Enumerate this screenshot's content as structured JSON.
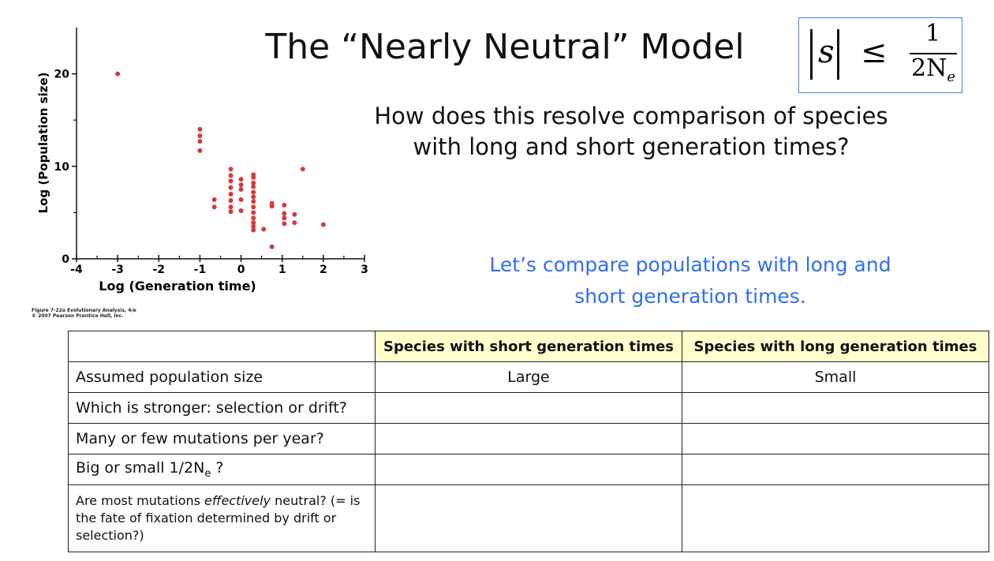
{
  "chart_data": {
    "type": "scatter",
    "x": [
      -3,
      -1,
      -1,
      -1,
      -1,
      -0.65,
      -0.65,
      -0.25,
      -0.25,
      -0.25,
      -0.25,
      -0.25,
      -0.25,
      -0.25,
      -0.25,
      0,
      0,
      0,
      0,
      0,
      0.3,
      0.3,
      0.3,
      0.3,
      0.3,
      0.3,
      0.3,
      0.3,
      0.3,
      0.3,
      0.3,
      0.3,
      0.3,
      0.55,
      0.75,
      0.75,
      0.75,
      1.05,
      1.05,
      1.05,
      1.05,
      1.3,
      1.3,
      1.5,
      2
    ],
    "values": [
      20,
      14,
      13.3,
      12.7,
      11.7,
      6.4,
      5.6,
      9.7,
      9,
      8.4,
      7.7,
      7,
      6.3,
      5.6,
      5.1,
      8.6,
      8,
      7.5,
      6.4,
      5.2,
      9.1,
      8.8,
      8.2,
      7.8,
      7.2,
      6.7,
      6.2,
      5.6,
      5,
      4.4,
      3.9,
      3.5,
      3.1,
      3.2,
      6,
      5.7,
      1.3,
      5.8,
      4.9,
      4.4,
      3.8,
      4.8,
      3.9,
      9.7,
      3.7
    ],
    "color": "#d6393b",
    "xlim": [
      -4,
      3
    ],
    "ylim": [
      0,
      25
    ],
    "xticks": [
      -4,
      -3,
      -2,
      -1,
      0,
      1,
      2,
      3
    ],
    "yticks": [
      0,
      10,
      20
    ],
    "x_minor_ticks": [
      -3.5,
      -2.5,
      -1.5,
      -0.5,
      0.5,
      1.5,
      2.5
    ],
    "y_minor_ticks": [
      5,
      15
    ],
    "xlabel": "Log (Generation time)",
    "ylabel": "Log (Population size)",
    "caption": [
      "Figure 7-22a  Evolutionary Analysis, 4/e",
      "© 2007 Pearson Prentice Hall, Inc."
    ]
  },
  "title": "The “Nearly Neutral” Model",
  "formula": {
    "lhs": "s",
    "relation": "≤",
    "numerator": "1",
    "denominator": "2N",
    "subscript": "e"
  },
  "question": [
    "How does this resolve comparison of species",
    "with long and short generation times?"
  ],
  "prompt": [
    "Let’s compare populations with long and",
    "short generation times."
  ],
  "table": {
    "header": [
      "Species with short generation times",
      "Species with long generation times"
    ],
    "rows": [
      {
        "label": "Assumed population size",
        "cells": [
          "Large",
          "Small"
        ]
      },
      {
        "label": "Which is stronger: selection or drift?"
      },
      {
        "label": "Many or few mutations per year?"
      },
      {
        "label": {
          "text": "Big or small 1/2N",
          "subscript": "e",
          "suffix": " ?"
        }
      },
      {
        "label": {
          "before": "Are most mutations ",
          "emphasis": "effectively",
          "after": " neutral? (= is the fate of fixation determined by drift or selection?)"
        }
      }
    ]
  }
}
